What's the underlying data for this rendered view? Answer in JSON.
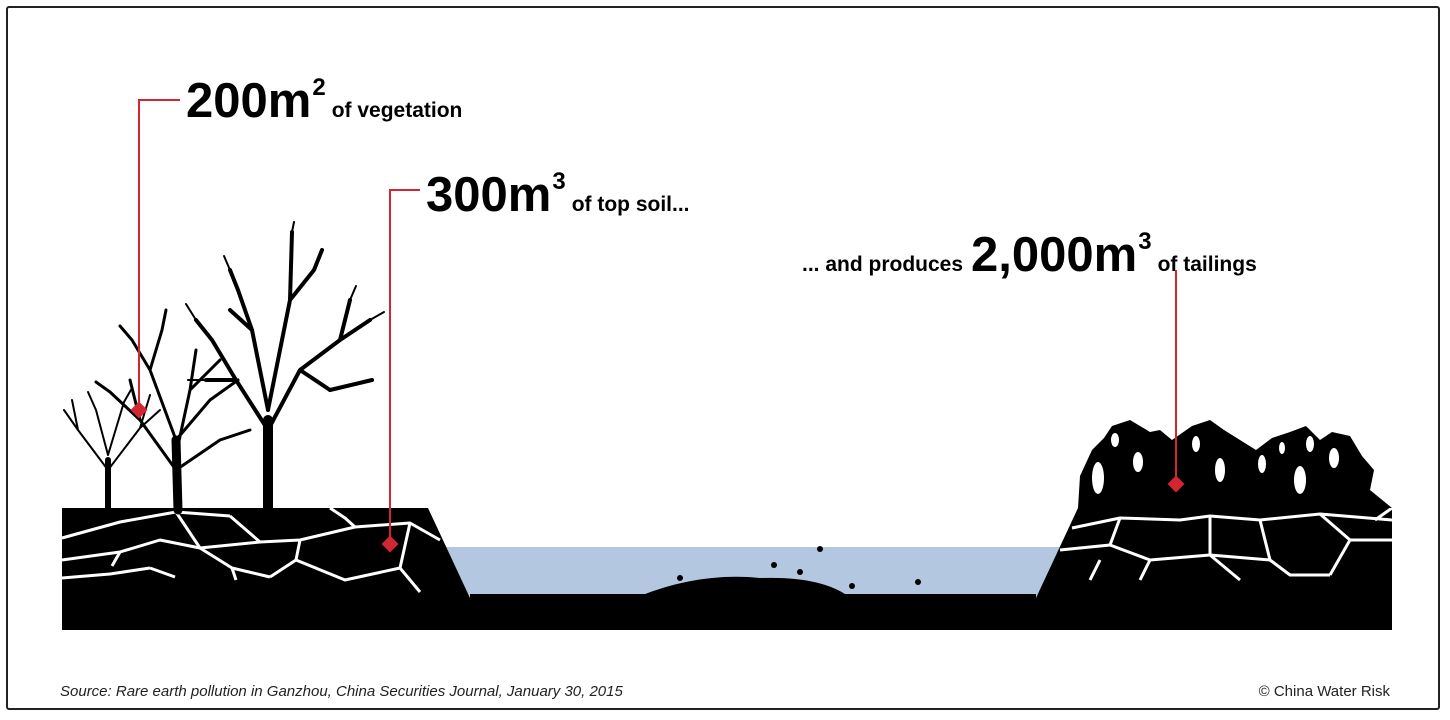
{
  "callouts": {
    "vegetation": {
      "amount": "200m",
      "exponent": "2",
      "text": "of vegetation"
    },
    "top_soil": {
      "amount": "300m",
      "exponent": "3",
      "text": "of top soil..."
    },
    "tailings": {
      "prefix": "... and produces",
      "amount": "2,000m",
      "exponent": "3",
      "text": "of tailings"
    }
  },
  "footer": {
    "source": "Source: Rare earth pollution in Ganzhou, China Securities Journal, January 30, 2015",
    "copyright": "© China Water Risk"
  },
  "colors": {
    "ground": "#000000",
    "water": "#b3c7e0",
    "marker": "#d22630"
  }
}
